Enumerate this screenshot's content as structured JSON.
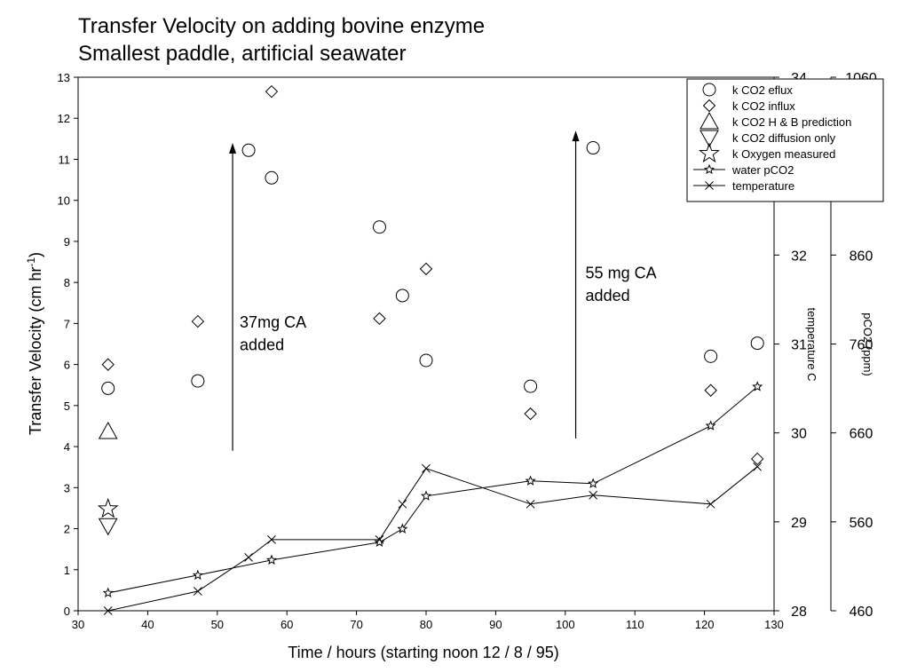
{
  "chart_data": {
    "type": "scatter",
    "title": "Transfer Velocity on adding bovine enzyme",
    "subtitle": "Smallest paddle, artificial seawater",
    "xlabel": "Time / hours (starting noon 12 / 8 / 95)",
    "ylabel_prefix": "Transfer Velocity (cm hr",
    "ylabel_sup": "-1",
    "ylabel_suffix": ")",
    "y2label": "temperature C",
    "y3label": "pCO2 (ppm)",
    "xlim": [
      30,
      130
    ],
    "ylim": [
      0,
      13
    ],
    "y2lim": [
      28,
      34
    ],
    "y3lim": [
      460,
      1060
    ],
    "xticks": [
      "30",
      "40",
      "50",
      "60",
      "70",
      "80",
      "90",
      "100",
      "110",
      "120",
      "130"
    ],
    "yticks": [
      "0",
      "1",
      "2",
      "3",
      "4",
      "5",
      "6",
      "7",
      "8",
      "9",
      "10",
      "11",
      "12",
      "13"
    ],
    "y2ticks": [
      "28",
      "29",
      "30",
      "31",
      "32",
      "34"
    ],
    "y3ticks": [
      "460",
      "560",
      "660",
      "760",
      "860",
      "1060"
    ],
    "series": [
      {
        "name": "k CO2 eflux",
        "marker": "circle",
        "x": [
          34.3,
          47.2,
          54.5,
          57.8,
          73.3,
          76.6,
          80.0,
          95.0,
          104.0,
          120.9,
          127.6
        ],
        "y": [
          5.42,
          5.6,
          11.22,
          10.55,
          9.35,
          7.68,
          6.1,
          5.47,
          11.28,
          6.2,
          6.52
        ]
      },
      {
        "name": "k CO2 influx",
        "marker": "diamond",
        "x": [
          34.3,
          47.2,
          57.8,
          73.3,
          80.0,
          95.0,
          120.9,
          127.6
        ],
        "y": [
          6.0,
          7.05,
          12.65,
          7.12,
          8.33,
          4.8,
          5.37,
          3.7
        ]
      },
      {
        "name": "k CO2 H & B prediction",
        "marker": "triangle-up",
        "x": [
          34.3
        ],
        "y": [
          4.37
        ]
      },
      {
        "name": "k CO2 diffusion only",
        "marker": "triangle-down",
        "x": [
          34.3
        ],
        "y": [
          2.07
        ]
      },
      {
        "name": "k Oxygen measured",
        "marker": "star",
        "x": [
          34.3
        ],
        "y": [
          2.48
        ]
      },
      {
        "name": "water pCO2",
        "marker": "star-line",
        "axis": "pCO2",
        "x": [
          34.3,
          47.2,
          57.8,
          73.3,
          76.6,
          80.0,
          95.0,
          104.0,
          120.9,
          127.6
        ],
        "y": [
          480,
          500,
          517,
          537,
          552,
          589,
          606,
          603,
          668,
          712
        ]
      },
      {
        "name": "temperature",
        "marker": "x-line",
        "axis": "temperature",
        "x": [
          34.3,
          47.2,
          54.5,
          57.8,
          73.3,
          76.6,
          80.0,
          95.0,
          104.0,
          120.9,
          127.6
        ],
        "y": [
          28.0,
          28.22,
          28.6,
          28.8,
          28.8,
          29.2,
          29.6,
          29.2,
          29.3,
          29.2,
          29.62
        ]
      }
    ],
    "annotations": [
      {
        "line1": "37mg CA",
        "line2": "added",
        "arrow_x": 52.2,
        "arrow_from": 3.9,
        "arrow_to": 11.4
      },
      {
        "line1": "55 mg CA",
        "line2": "added",
        "arrow_x": 101.5,
        "arrow_from": 4.2,
        "arrow_to": 11.7
      }
    ],
    "legend_position": "top-right"
  }
}
